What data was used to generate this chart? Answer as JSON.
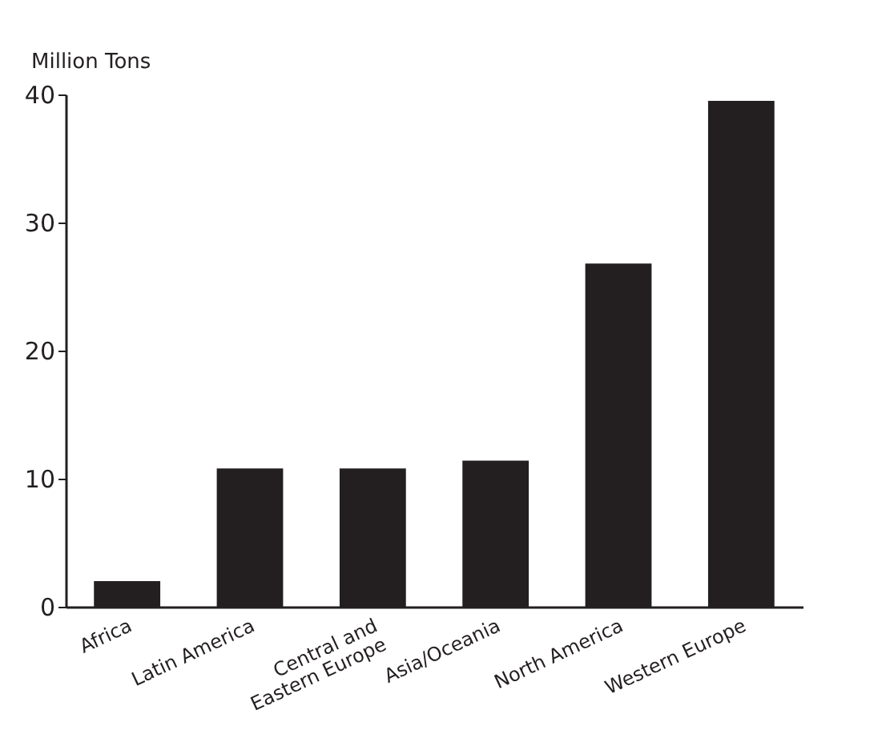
{
  "chart_data": {
    "type": "bar",
    "ylabel": "Million Tons",
    "categories": [
      "Africa",
      "Latin America",
      "Central and Eastern Europe",
      "Asia/Oceania",
      "North America",
      "Western Europe"
    ],
    "values": [
      2,
      10.8,
      10.8,
      11.4,
      26.8,
      39.5
    ],
    "color": "#231f20",
    "ylim": [
      0,
      40
    ],
    "yticks": [
      0,
      10,
      20,
      30,
      40
    ],
    "grid": false
  }
}
